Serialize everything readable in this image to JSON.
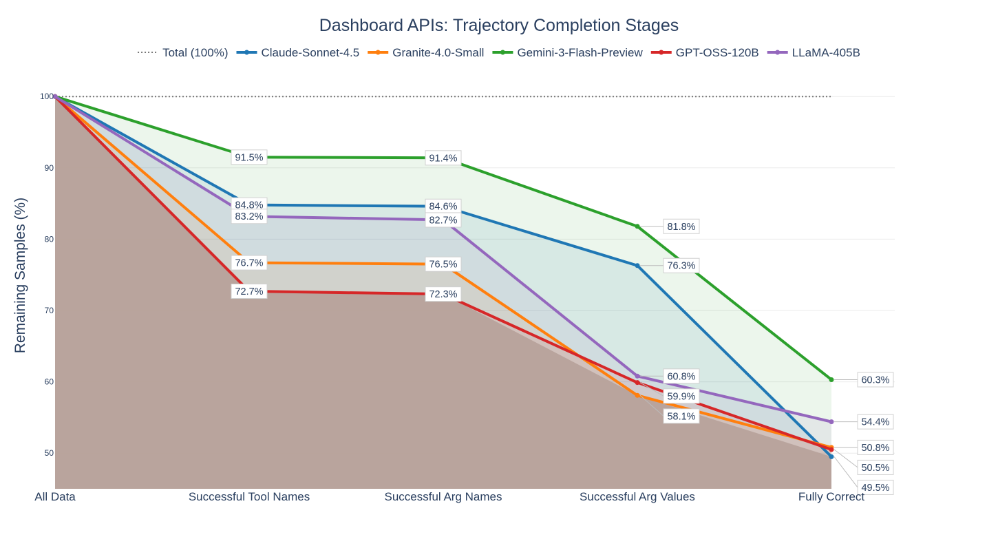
{
  "chart_data": {
    "type": "line",
    "title": "Dashboard APIs: Trajectory Completion Stages",
    "ylabel": "Remaining Samples (%)",
    "xlabel": "",
    "categories": [
      "All Data",
      "Successful Tool Names",
      "Successful Arg Names",
      "Successful Arg Values",
      "Fully Correct"
    ],
    "ylim": [
      45,
      100
    ],
    "yticks": [
      50,
      60,
      70,
      80,
      90,
      100
    ],
    "grid": true,
    "legend_position": "top-center",
    "reference": {
      "name": "Total (100%)",
      "value": 100,
      "color": "#777777",
      "style": "dotted"
    },
    "series": [
      {
        "name": "Claude-Sonnet-4.5",
        "color": "#1f77b4",
        "fill": "rgba(31,119,180,0.10)",
        "values": [
          100,
          84.8,
          84.6,
          76.3,
          49.5
        ],
        "labels": [
          "",
          "84.8%",
          "84.6%",
          "76.3%",
          "49.5%"
        ]
      },
      {
        "name": "Granite-4.0-Small",
        "color": "#ff7f0e",
        "fill": "rgba(255,127,14,0.10)",
        "values": [
          100,
          76.7,
          76.5,
          58.1,
          50.8
        ],
        "labels": [
          "",
          "76.7%",
          "76.5%",
          "58.1%",
          "50.8%"
        ]
      },
      {
        "name": "Gemini-3-Flash-Preview",
        "color": "#2ca02c",
        "fill": "rgba(44,160,44,0.09)",
        "values": [
          100,
          91.5,
          91.4,
          81.8,
          60.3
        ],
        "labels": [
          "",
          "91.5%",
          "91.4%",
          "81.8%",
          "60.3%"
        ]
      },
      {
        "name": "GPT-OSS-120B",
        "color": "#d62728",
        "fill": "rgba(214,39,40,0.10)",
        "values": [
          100,
          72.7,
          72.3,
          59.9,
          50.5
        ],
        "labels": [
          "",
          "72.7%",
          "72.3%",
          "59.9%",
          "50.5%"
        ]
      },
      {
        "name": "LLaMA-405B",
        "color": "#9467bd",
        "fill": "rgba(148,103,189,0.10)",
        "values": [
          100,
          83.2,
          82.7,
          60.8,
          54.4
        ],
        "labels": [
          "",
          "83.2%",
          "82.7%",
          "60.8%",
          "54.4%"
        ]
      }
    ]
  }
}
